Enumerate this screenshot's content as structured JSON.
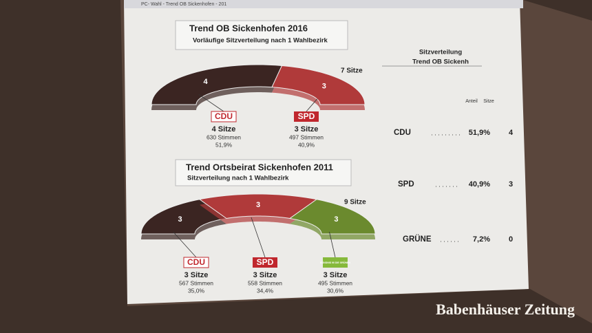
{
  "window_title": "PC- Wahl - Trend OB Sickenhofen - 201",
  "panels": [
    {
      "title": "Trend OB Sickenhofen 2016",
      "subtitle": "Vorläufige Sitzverteilung nach 1 Wahlbezirk",
      "total_label": "7 Sitze",
      "parties": [
        {
          "logo": "CDU",
          "color": "#3b2522",
          "seats": 4,
          "seats_label": "4 Sitze",
          "votes_label": "630 Stimmen",
          "share_label": "51,9%"
        },
        {
          "logo": "SPD",
          "color": "#b03a3a",
          "seats": 3,
          "seats_label": "3 Sitze",
          "votes_label": "497 Stimmen",
          "share_label": "40,9%"
        }
      ]
    },
    {
      "title": "Trend Ortsbeirat Sickenhofen 2011",
      "subtitle": "Sitzverteilung nach 1 Wahlbezirk",
      "total_label": "9 Sitze",
      "parties": [
        {
          "logo": "CDU",
          "color": "#3b2522",
          "seats": 3,
          "seats_label": "3 Sitze",
          "votes_label": "567 Stimmen",
          "share_label": "35,0%"
        },
        {
          "logo": "SPD",
          "color": "#b03a3a",
          "seats": 3,
          "seats_label": "3 Sitze",
          "votes_label": "558 Stimmen",
          "share_label": "34,4%"
        },
        {
          "logo": "BÜNDNIS 90 DIE GRÜNEN",
          "color": "#6b8a2e",
          "seats": 3,
          "seats_label": "3 Sitze",
          "votes_label": "495 Stimmen",
          "share_label": "30,6%"
        }
      ]
    }
  ],
  "side": {
    "title": [
      "Sitzverteilung",
      "Trend OB Sickenh"
    ],
    "headers": [
      "Anteil",
      "Sitze"
    ],
    "rows": [
      [
        "CDU",
        "51,9%",
        "4"
      ],
      [
        "SPD",
        "40,9%",
        "3"
      ],
      [
        "GRÜNE",
        "7,2%",
        "0"
      ]
    ]
  },
  "watermark": "Babenhäuser Zeitung"
}
